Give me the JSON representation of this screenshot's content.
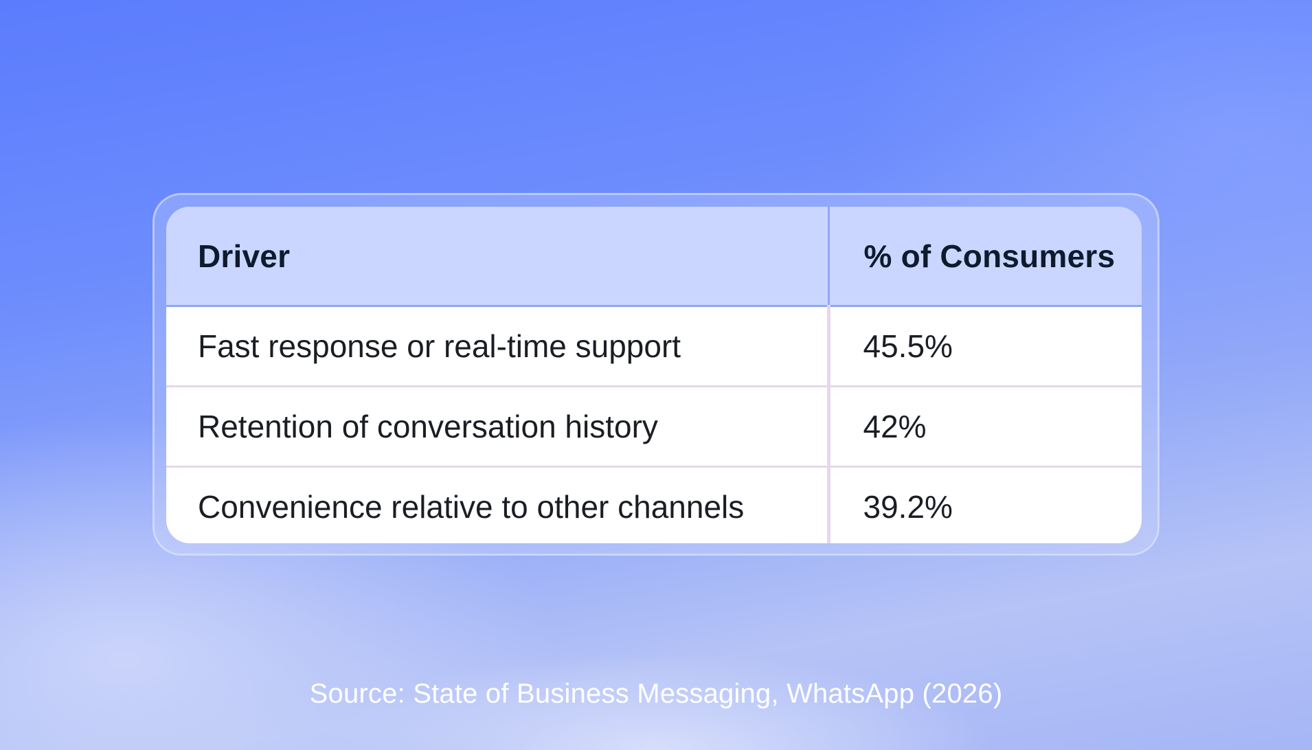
{
  "chart_data": {
    "type": "table",
    "columns": [
      "Driver",
      "% of Consumers"
    ],
    "rows": [
      {
        "driver": "Fast response or real-time support",
        "value": "45.5%"
      },
      {
        "driver": "Retention of conversation history",
        "value": "42%"
      },
      {
        "driver": "Convenience relative to other channels",
        "value": "39.2%"
      }
    ]
  },
  "source": "Source: State of Business Messaging, WhatsApp (2026)",
  "colors": {
    "header_bg": "#cad6ff",
    "header_text": "#0f1b2d",
    "row_divider": "#e7d7ea",
    "header_divider": "#8fa7f5",
    "background_top": "#5b7cfd",
    "background_bottom": "#b5c3f6"
  }
}
